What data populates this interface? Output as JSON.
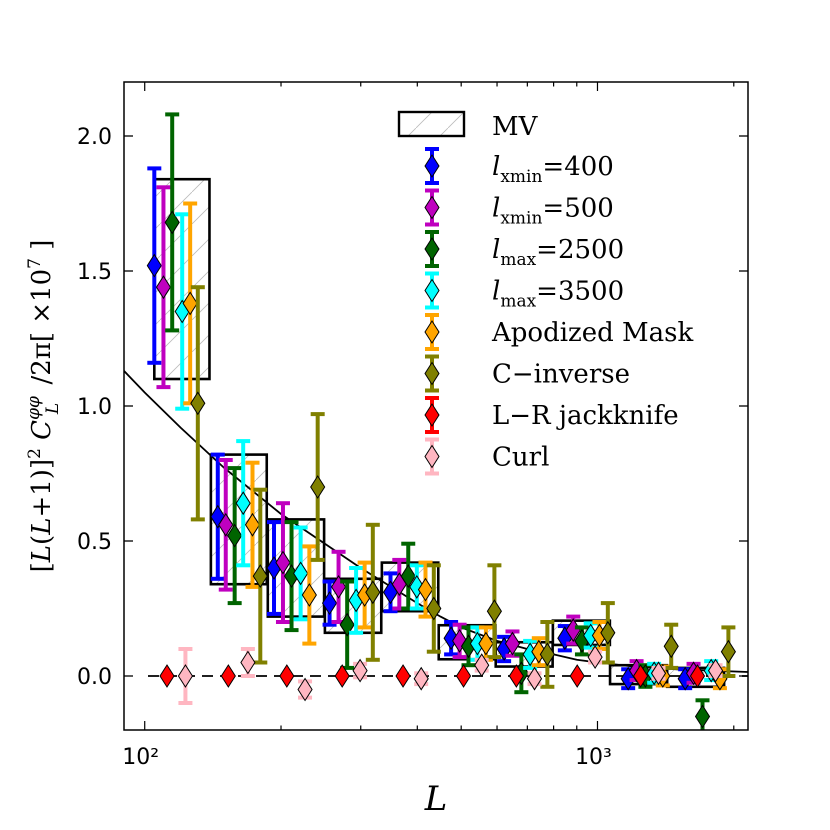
{
  "chart_data": {
    "type": "scatter",
    "title": "",
    "xlabel": "L",
    "ylabel": "[L(L+1)]² C_L^{φφ} /2π[ ×10⁷ ]",
    "x_scale": "log",
    "xlim": [
      90,
      2150
    ],
    "ylim": [
      -0.2,
      2.2
    ],
    "x_tick_labels": [
      "10²",
      "10³"
    ],
    "y_tick_labels": [
      "0.0",
      "0.5",
      "1.0",
      "1.5",
      "2.0"
    ],
    "y_ticks": [
      0.0,
      0.5,
      1.0,
      1.5,
      2.0
    ],
    "x_ticks": [
      100,
      1000
    ],
    "grid": false,
    "legend_position": "top-right",
    "reference_line": [
      0.0
    ],
    "theory_curve": {
      "L": [
        90,
        100,
        120,
        150,
        200,
        250,
        300,
        350,
        400,
        450,
        500,
        600,
        700,
        800,
        900,
        1000,
        1200,
        1500,
        2150
      ],
      "value": [
        1.13,
        1.05,
        0.92,
        0.77,
        0.6,
        0.49,
        0.4,
        0.33,
        0.27,
        0.22,
        0.18,
        0.13,
        0.1,
        0.08,
        0.06,
        0.05,
        0.035,
        0.025,
        0.015
      ]
    },
    "mv_bins": [
      {
        "L_low": 105,
        "L_high": 139,
        "value": 1.47,
        "err": 0.37
      },
      {
        "L_low": 140,
        "L_high": 186,
        "value": 0.58,
        "err": 0.24
      },
      {
        "L_low": 187,
        "L_high": 249,
        "value": 0.4,
        "err": 0.18
      },
      {
        "L_low": 250,
        "L_high": 333,
        "value": 0.26,
        "err": 0.1
      },
      {
        "L_low": 334,
        "L_high": 445,
        "value": 0.33,
        "err": 0.09
      },
      {
        "L_low": 446,
        "L_high": 595,
        "value": 0.125,
        "err": 0.063
      },
      {
        "L_low": 596,
        "L_high": 796,
        "value": 0.08,
        "err": 0.045
      },
      {
        "L_low": 797,
        "L_high": 1065,
        "value": 0.16,
        "err": 0.045
      },
      {
        "L_low": 1066,
        "L_high": 1424,
        "value": 0.005,
        "err": 0.035
      },
      {
        "L_low": 1425,
        "L_high": 1904,
        "value": -0.005,
        "err": 0.035
      }
    ],
    "series": [
      {
        "name": "l_xmin=400",
        "color": "#0000ff",
        "x": [
          105,
          145,
          193,
          256,
          349,
          475,
          622,
          847,
          1169,
          1562
        ],
        "y": [
          1.52,
          0.59,
          0.4,
          0.27,
          0.31,
          0.14,
          0.1,
          0.14,
          -0.01,
          -0.01
        ],
        "err": [
          0.36,
          0.23,
          0.17,
          0.08,
          0.07,
          0.06,
          0.045,
          0.045,
          0.035,
          0.035
        ]
      },
      {
        "name": "l_xmin=500",
        "color": "#bf00bf",
        "x": [
          110,
          151,
          202,
          268,
          365,
          496,
          649,
          884,
          1220,
          1630
        ],
        "y": [
          1.44,
          0.56,
          0.42,
          0.33,
          0.34,
          0.13,
          0.12,
          0.17,
          0.02,
          0.01
        ],
        "err": [
          0.37,
          0.24,
          0.22,
          0.13,
          0.09,
          0.06,
          0.045,
          0.05,
          0.035,
          0.035
        ]
      },
      {
        "name": "l_max=2500",
        "color": "#006400",
        "x": [
          115,
          158,
          211,
          280,
          382,
          519,
          679,
          924,
          1276,
          1706
        ],
        "y": [
          1.68,
          0.52,
          0.37,
          0.19,
          0.37,
          0.11,
          0.01,
          0.13,
          0.0,
          -0.15
        ],
        "err": [
          0.4,
          0.25,
          0.2,
          0.16,
          0.12,
          0.07,
          0.07,
          0.05,
          0.04,
          0.06
        ]
      },
      {
        "name": "l_max=3500",
        "color": "#00ffff",
        "x": [
          121,
          165,
          221,
          293,
          399,
          543,
          710,
          966,
          1334,
          1783
        ],
        "y": [
          1.35,
          0.64,
          0.38,
          0.28,
          0.33,
          0.12,
          0.08,
          0.15,
          0.01,
          0.02
        ],
        "err": [
          0.36,
          0.23,
          0.17,
          0.12,
          0.08,
          0.06,
          0.05,
          0.045,
          0.035,
          0.035
        ]
      },
      {
        "name": "Apodized Mask",
        "color": "#ffa500",
        "x": [
          126,
          173,
          231,
          306,
          417,
          567,
          742,
          1010,
          1394,
          1864
        ],
        "y": [
          1.38,
          0.56,
          0.3,
          0.3,
          0.32,
          0.12,
          0.09,
          0.15,
          0.0,
          -0.01
        ],
        "err": [
          0.37,
          0.23,
          0.18,
          0.12,
          0.1,
          0.06,
          0.05,
          0.05,
          0.035,
          0.035
        ]
      },
      {
        "name": "C−inverse",
        "color": "#808000",
        "x": [
          131,
          180,
          241,
          319,
          435,
          592,
          775,
          1054,
          1455,
          1946
        ],
        "y": [
          1.01,
          0.37,
          0.7,
          0.31,
          0.25,
          0.24,
          0.08,
          0.16,
          0.11,
          0.09
        ],
        "err": [
          0.43,
          0.32,
          0.27,
          0.25,
          0.16,
          0.17,
          0.12,
          0.11,
          0.08,
          0.09
        ]
      },
      {
        "name": "L−R jackknife",
        "color": "#ff0000",
        "x": [
          112,
          153,
          206,
          273,
          372,
          506,
          662,
          902,
          1245,
          1663
        ],
        "y": [
          0.0,
          0.0,
          0.0,
          0.0,
          0.0,
          0.0,
          0.0,
          0.0,
          0.0,
          0.0
        ],
        "err": [
          0.0,
          0.0,
          0.0,
          0.0,
          0.0,
          0.0,
          0.0,
          0.0,
          0.0,
          0.0
        ]
      },
      {
        "name": "Curl",
        "color": "#ffb6c1",
        "x": [
          123,
          169,
          226,
          299,
          408,
          555,
          726,
          988,
          1364,
          1823
        ],
        "y": [
          0.0,
          0.05,
          -0.05,
          0.02,
          -0.01,
          0.04,
          -0.01,
          0.07,
          0.01,
          0.02
        ],
        "err": [
          0.1,
          0.05,
          0.03,
          0.025,
          0.02,
          0.02,
          0.02,
          0.02,
          0.02,
          0.02
        ]
      }
    ]
  },
  "legend": {
    "mv_label": "MV",
    "items": [
      {
        "base": "l",
        "sub": "xmin",
        "value": "=400"
      },
      {
        "base": "l",
        "sub": "xmin",
        "value": "=500"
      },
      {
        "base": "l",
        "sub": "max",
        "value": "=2500"
      },
      {
        "base": "l",
        "sub": "max",
        "value": "=3500"
      },
      {
        "text": "Apodized Mask"
      },
      {
        "text": "C−inverse"
      },
      {
        "text": "L−R jackknife"
      },
      {
        "text": "Curl"
      }
    ]
  }
}
